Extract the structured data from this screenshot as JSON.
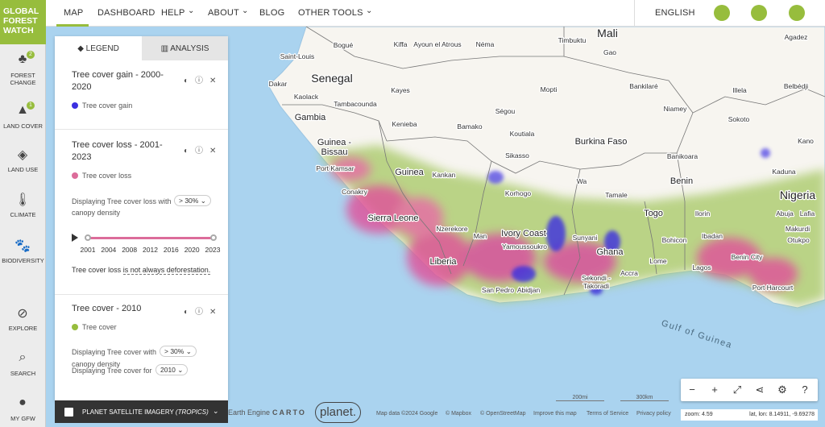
{
  "logo": [
    "GLOBAL",
    "FOREST",
    "WATCH"
  ],
  "nav": {
    "items": [
      "MAP",
      "DASHBOARD",
      "HELP",
      "ABOUT",
      "BLOG",
      "OTHER TOOLS"
    ],
    "language": "ENGLISH"
  },
  "sidebar": {
    "items": [
      {
        "label": "FOREST CHANGE",
        "badge": "2"
      },
      {
        "label": "LAND COVER",
        "badge": "1"
      },
      {
        "label": "LAND USE"
      },
      {
        "label": "CLIMATE"
      },
      {
        "label": "BIODIVERSITY"
      },
      {
        "label": "EXPLORE"
      },
      {
        "label": "SEARCH"
      },
      {
        "label": "MY GFW"
      }
    ]
  },
  "legend": {
    "tabs": [
      "LEGEND",
      "ANALYSIS"
    ],
    "layers": [
      {
        "title": "Tree cover gain - 2000-2020",
        "item": "Tree cover gain",
        "color": "#3b2fe0"
      },
      {
        "title": "Tree cover loss - 2001-2023",
        "item": "Tree cover loss",
        "color": "#dc6c9a",
        "density": {
          "prefix": "Displaying Tree cover loss with",
          "value": "> 30%",
          "suffix": "canopy density"
        },
        "timeline": [
          "2001",
          "2004",
          "2008",
          "2012",
          "2016",
          "2020",
          "2023"
        ],
        "note": {
          "text": "Tree cover loss",
          "link": "is not always deforestation."
        }
      },
      {
        "title": "Tree cover - 2010",
        "item": "Tree cover",
        "color": "#97bd3d",
        "density": {
          "prefix": "Displaying Tree cover with",
          "value": "> 30%",
          "suffix": "canopy density"
        },
        "year": {
          "prefix": "Displaying Tree cover for",
          "value": "2010"
        }
      }
    ]
  },
  "planet_bar": {
    "label": "PLANET SATELLITE IMAGERY",
    "qualifier": "(TROPICS)"
  },
  "map": {
    "labels": [
      "Mali",
      "Bogué",
      "Kiffa",
      "Ayoun el Atrous",
      "Néma",
      "Timbuktu",
      "Agadez",
      "Saint-Louis",
      "Gao",
      "Dakar",
      "Senegal",
      "Kaolack",
      "Kayes",
      "Mopti",
      "Bankilaré",
      "Illela",
      "Belbédji",
      "Tambacounda",
      "Niamey",
      "Gambia",
      "Ségou",
      "Sokoto",
      "Kenieba",
      "Bamako",
      "Koutiala",
      "Burkina Faso",
      "Kano",
      "Guinea -",
      "Bissau",
      "Sikasso",
      "Banikoara",
      "Kaduna",
      "Port Kamsar",
      "Guinea",
      "Kankan",
      "Wa",
      "Benin",
      "Conakry",
      "Korhogo",
      "Tamale",
      "Nigeria",
      "Sierra Leone",
      "Togo",
      "Ilorin",
      "Abuja",
      "Lafia",
      "Nzerekore",
      "Man",
      "Ivory Coast",
      "Sunyani",
      "Ibadan",
      "Makurdi",
      "Bohicon",
      "Otukpo",
      "Yamoussoukro",
      "Liberia",
      "Ghana",
      "Benin City",
      "Lome",
      "Lagos",
      "Sekondi -",
      "Takoradi",
      "Accra",
      "San Pedro",
      "Abidjan",
      "Port Harcourt",
      "Gulf of Guinea"
    ],
    "logos": [
      "Earth Engine",
      "CARTO",
      "planet."
    ],
    "attribution": [
      "Map data ©2024 Google",
      "© Mapbox",
      "© OpenStreetMap",
      "Improve this map",
      "Terms of Service",
      "Privacy policy"
    ],
    "scale": [
      "200mi",
      "300km"
    ],
    "zoom": "zoom: 4.59",
    "coords": "lat, lon: 8.14911, -9.69278"
  }
}
